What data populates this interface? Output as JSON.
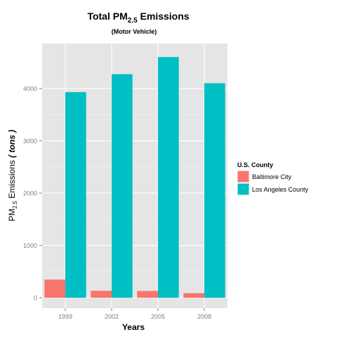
{
  "chart_data": {
    "type": "bar",
    "title": {
      "main": "Total PM",
      "sub": "2.5",
      "tail": " Emissions"
    },
    "subtitle": "(Motor Vehicle)",
    "xlabel": "Years",
    "ylabel": {
      "main": "PM",
      "sub": "2.5",
      "mid": " Emissions  ",
      "unit": "( tons )"
    },
    "categories": [
      "1999",
      "2002",
      "2005",
      "2008"
    ],
    "series": [
      {
        "name": "Baltimore City",
        "color": "#F8766D",
        "values": [
          347,
          134,
          130,
          88
        ]
      },
      {
        "name": "Los Angeles County",
        "color": "#00BFC4",
        "values": [
          3931,
          4274,
          4602,
          4101
        ]
      }
    ],
    "ylim": [
      -200,
      4860
    ],
    "yticks": [
      0,
      1000,
      2000,
      3000,
      4000
    ],
    "ytick_labels": [
      "0",
      "1000",
      "2000",
      "3000",
      "4000"
    ],
    "grid": true,
    "legend": {
      "title": "U.S. County",
      "placement": "right"
    }
  }
}
